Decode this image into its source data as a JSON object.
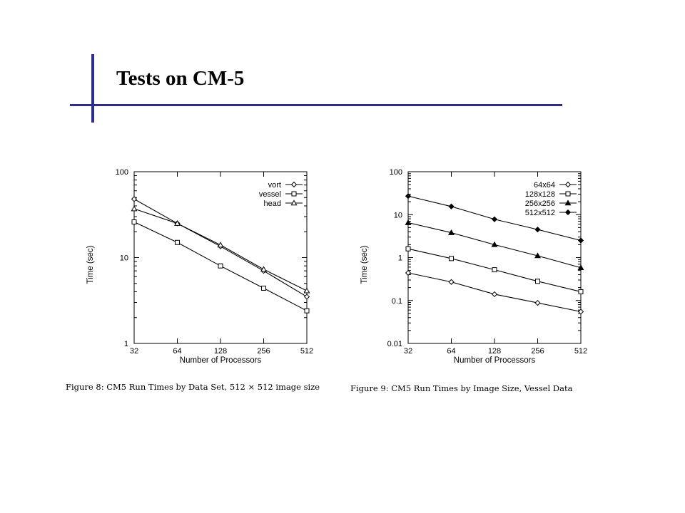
{
  "title": "Tests on CM-5",
  "colors": {
    "accent": "#2e2e8c",
    "ink": "#000000",
    "background": "#ffffff"
  },
  "captions": {
    "figure8": "Figure 8: CM5 Run Times by Data Set, 512 × 512 image size",
    "figure9": "Figure 9: CM5 Run Times by Image Size, Vessel Data"
  },
  "chart_data": [
    {
      "type": "line",
      "xlabel": "Number of Processors",
      "ylabel": "Time (sec)",
      "xscale": "log2",
      "yscale": "log",
      "x": [
        32,
        64,
        128,
        256,
        512
      ],
      "x_tick_labels": [
        "32",
        "64",
        "128",
        "256",
        "512"
      ],
      "ylim": [
        1,
        100
      ],
      "y_ticks": [
        1,
        10,
        100
      ],
      "y_tick_labels": [
        "1",
        "10",
        "100"
      ],
      "legend_position": "top-right",
      "grid": false,
      "series": [
        {
          "name": "vort",
          "marker": "diamond",
          "values": [
            48,
            25,
            13.5,
            7.0,
            3.5
          ]
        },
        {
          "name": "vessel",
          "marker": "square",
          "values": [
            26,
            15,
            8.0,
            4.4,
            2.4
          ]
        },
        {
          "name": "head",
          "marker": "triangle",
          "values": [
            37,
            25,
            14,
            7.3,
            4.1
          ]
        }
      ]
    },
    {
      "type": "line",
      "xlabel": "Number of Processors",
      "ylabel": "Time (sec)",
      "xscale": "log2",
      "yscale": "log",
      "x": [
        32,
        64,
        128,
        256,
        512
      ],
      "x_tick_labels": [
        "32",
        "64",
        "128",
        "256",
        "512"
      ],
      "ylim": [
        0.01,
        100
      ],
      "y_ticks": [
        0.01,
        0.1,
        1,
        10,
        100
      ],
      "y_tick_labels": [
        "0.01",
        "0.1",
        "1",
        "10",
        "100"
      ],
      "legend_position": "top-right",
      "grid": false,
      "series": [
        {
          "name": "64x64",
          "marker": "diamond",
          "values": [
            0.44,
            0.27,
            0.14,
            0.088,
            0.055
          ]
        },
        {
          "name": "128x128",
          "marker": "square",
          "values": [
            1.6,
            0.95,
            0.52,
            0.28,
            0.16
          ]
        },
        {
          "name": "256x256",
          "marker": "triangle-filled",
          "values": [
            6.5,
            3.8,
            2.0,
            1.1,
            0.58
          ]
        },
        {
          "name": "512x512",
          "marker": "diamond-filled",
          "values": [
            27,
            15.5,
            7.8,
            4.5,
            2.5
          ]
        }
      ]
    }
  ]
}
